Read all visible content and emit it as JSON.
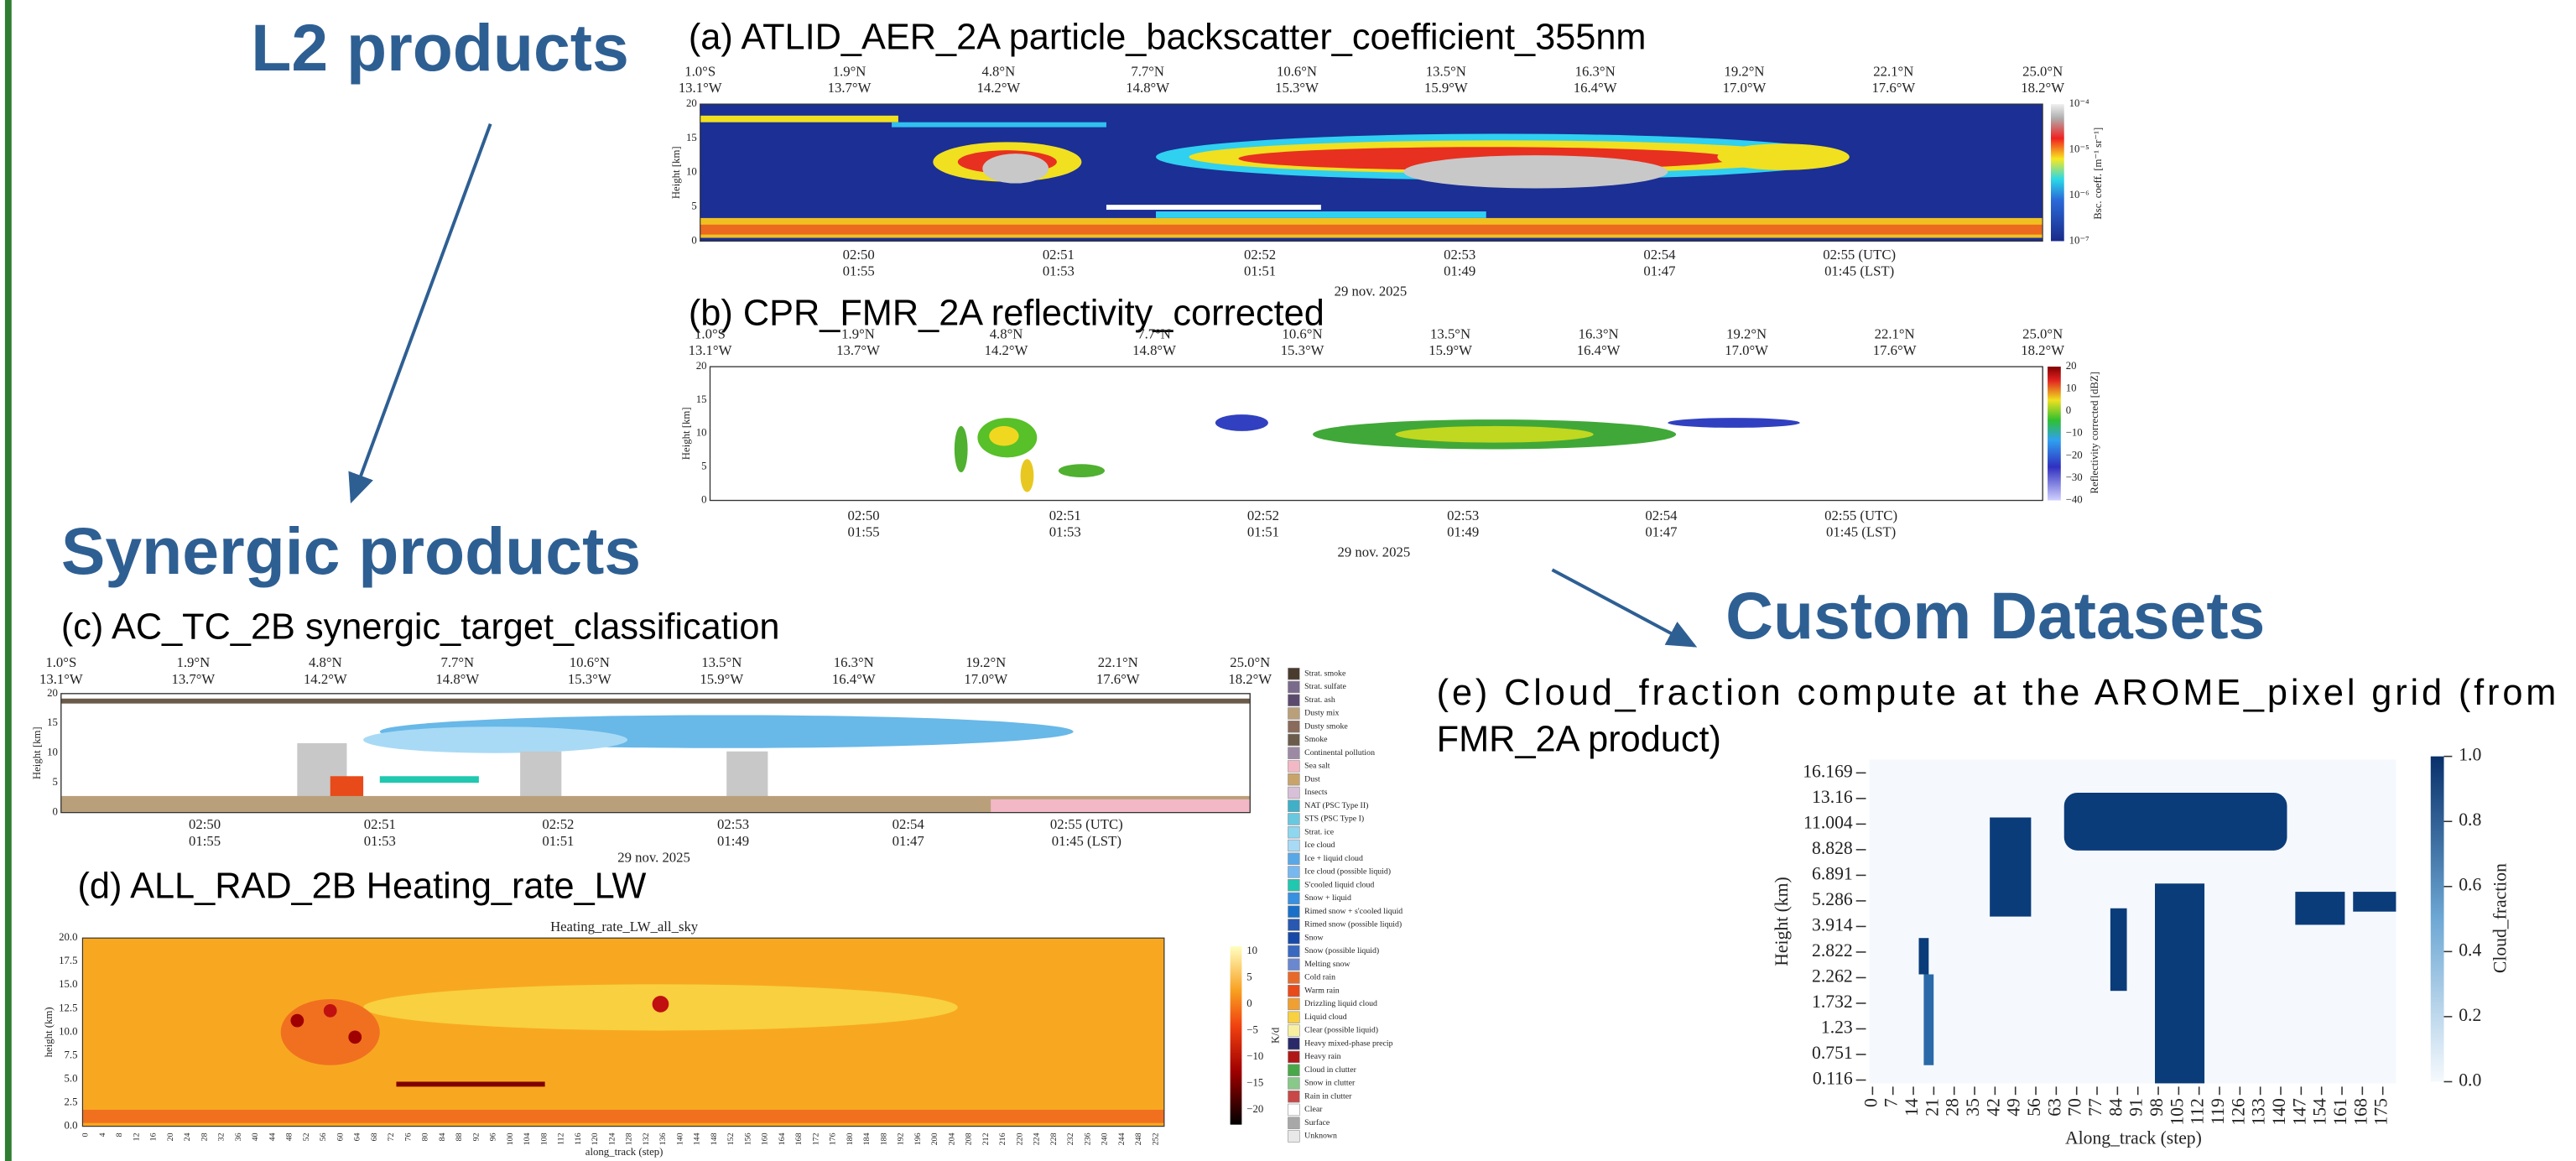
{
  "headings": {
    "l2": "L2 products",
    "synergic": "Synergic products",
    "custom": "Custom Datasets"
  },
  "panels": {
    "a": {
      "title": "(a) ATLID_AER_2A particle_backscatter_coefficient_355nm",
      "top_ticks": [
        [
          "1.0°S",
          "13.1°W"
        ],
        [
          "1.9°N",
          "13.7°W"
        ],
        [
          "4.8°N",
          "14.2°W"
        ],
        [
          "7.7°N",
          "14.8°W"
        ],
        [
          "10.6°N",
          "15.3°W"
        ],
        [
          "13.5°N",
          "15.9°W"
        ],
        [
          "16.3°N",
          "16.4°W"
        ],
        [
          "19.2°N",
          "17.0°W"
        ],
        [
          "22.1°N",
          "17.6°W"
        ],
        [
          "25.0°N",
          "18.2°W"
        ]
      ],
      "y_label": "Height [km]",
      "y_ticks": [
        "20",
        "15",
        "10",
        "5",
        "0"
      ],
      "time_ticks": [
        [
          "02:50",
          "01:55"
        ],
        [
          "02:51",
          "01:53"
        ],
        [
          "02:52",
          "01:51"
        ],
        [
          "02:53",
          "01:49"
        ],
        [
          "02:54",
          "01:47"
        ],
        [
          "02:55 (UTC)",
          "01:45 (LST)"
        ]
      ],
      "date": "29 nov. 2025",
      "colorbar_label": "Bsc. coeff. [m⁻¹ sr⁻¹]",
      "colorbar_ticks": [
        "10⁻⁴",
        "10⁻⁵",
        "10⁻⁶",
        "10⁻⁷"
      ]
    },
    "b": {
      "title": "(b) CPR_FMR_2A reflectivity_corrected",
      "top_ticks": [
        [
          "1.0°S",
          "13.1°W"
        ],
        [
          "1.9°N",
          "13.7°W"
        ],
        [
          "4.8°N",
          "14.2°W"
        ],
        [
          "7.7°N",
          "14.8°W"
        ],
        [
          "10.6°N",
          "15.3°W"
        ],
        [
          "13.5°N",
          "15.9°W"
        ],
        [
          "16.3°N",
          "16.4°W"
        ],
        [
          "19.2°N",
          "17.0°W"
        ],
        [
          "22.1°N",
          "17.6°W"
        ],
        [
          "25.0°N",
          "18.2°W"
        ]
      ],
      "y_label": "Height [km]",
      "y_ticks": [
        "20",
        "15",
        "10",
        "5",
        "0"
      ],
      "time_ticks": [
        [
          "02:50",
          "01:55"
        ],
        [
          "02:51",
          "01:53"
        ],
        [
          "02:52",
          "01:51"
        ],
        [
          "02:53",
          "01:49"
        ],
        [
          "02:54",
          "01:47"
        ],
        [
          "02:55 (UTC)",
          "01:45 (LST)"
        ]
      ],
      "date": "29 nov. 2025",
      "colorbar_label": "Reflectivity corrected [dBZ]",
      "colorbar_ticks": [
        "20",
        "10",
        "0",
        "−10",
        "−20",
        "−30",
        "−40"
      ]
    },
    "c": {
      "title": "(c) AC_TC_2B synergic_target_classification",
      "top_ticks": [
        [
          "1.0°S",
          "13.1°W"
        ],
        [
          "1.9°N",
          "13.7°W"
        ],
        [
          "4.8°N",
          "14.2°W"
        ],
        [
          "7.7°N",
          "14.8°W"
        ],
        [
          "10.6°N",
          "15.3°W"
        ],
        [
          "13.5°N",
          "15.9°W"
        ],
        [
          "16.3°N",
          "16.4°W"
        ],
        [
          "19.2°N",
          "17.0°W"
        ],
        [
          "22.1°N",
          "17.6°W"
        ],
        [
          "25.0°N",
          "18.2°W"
        ]
      ],
      "y_label": "Height [km]",
      "y_ticks": [
        "20",
        "15",
        "10",
        "5",
        "0"
      ],
      "time_ticks": [
        [
          "02:50",
          "01:55"
        ],
        [
          "02:51",
          "01:53"
        ],
        [
          "02:52",
          "01:51"
        ],
        [
          "02:53",
          "01:49"
        ],
        [
          "02:54",
          "01:47"
        ],
        [
          "02:55 (UTC)",
          "01:45 (LST)"
        ]
      ],
      "date": "29 nov. 2025",
      "legend": [
        {
          "label": "Strat. smoke",
          "color": "#4a3b2f"
        },
        {
          "label": "Strat. sulfate",
          "color": "#7a6a8c"
        },
        {
          "label": "Strat. ash",
          "color": "#5b4a6e"
        },
        {
          "label": "Dusty mix",
          "color": "#b9a07a"
        },
        {
          "label": "Dusty smoke",
          "color": "#8a6a5a"
        },
        {
          "label": "Smoke",
          "color": "#6b5b4b"
        },
        {
          "label": "Continental pollution",
          "color": "#9c8aa5"
        },
        {
          "label": "Sea salt",
          "color": "#f2b8c6"
        },
        {
          "label": "Dust",
          "color": "#c8a46a"
        },
        {
          "label": "Insects",
          "color": "#d8c0d8"
        },
        {
          "label": "NAT (PSC Type II)",
          "color": "#3fb0c8"
        },
        {
          "label": "STS (PSC Type I)",
          "color": "#68c8e0"
        },
        {
          "label": "Strat. ice",
          "color": "#8fd6ef"
        },
        {
          "label": "Ice cloud",
          "color": "#a8daf5"
        },
        {
          "label": "Ice + liquid cloud",
          "color": "#58a8e8"
        },
        {
          "label": "Ice cloud (possible liquid)",
          "color": "#78b8f0"
        },
        {
          "label": "S'cooled liquid cloud",
          "color": "#20c8b0"
        },
        {
          "label": "Snow + liquid",
          "color": "#3890e0"
        },
        {
          "label": "Rimed snow + s'cooled liquid",
          "color": "#1a70c8"
        },
        {
          "label": "Rimed snow (possible liquid)",
          "color": "#2858b0"
        },
        {
          "label": "Snow",
          "color": "#1848a8"
        },
        {
          "label": "Snow (possible liquid)",
          "color": "#3868c0"
        },
        {
          "label": "Melting snow",
          "color": "#6a88d0"
        },
        {
          "label": "Cold rain",
          "color": "#e86a2a"
        },
        {
          "label": "Warm rain",
          "color": "#e84a1a"
        },
        {
          "label": "Drizzling liquid cloud",
          "color": "#f0a030"
        },
        {
          "label": "Liquid cloud",
          "color": "#f8d040"
        },
        {
          "label": "Clear (possible liquid)",
          "color": "#f8f0a0"
        },
        {
          "label": "Heavy mixed-phase precip",
          "color": "#2a2a6a"
        },
        {
          "label": "Heavy rain",
          "color": "#b01818"
        },
        {
          "label": "Cloud in clutter",
          "color": "#48a848"
        },
        {
          "label": "Snow in clutter",
          "color": "#88c888"
        },
        {
          "label": "Rain in clutter",
          "color": "#c84848"
        },
        {
          "label": "Clear",
          "color": "#ffffff"
        },
        {
          "label": "Surface",
          "color": "#a8a8a8"
        },
        {
          "label": "Unknown",
          "color": "#e8e8e8"
        }
      ]
    },
    "d": {
      "title": "(d) ALL_RAD_2B Heating_rate_LW",
      "plot_title": "Heating_rate_LW_all_sky",
      "y_label": "height (km)",
      "y_ticks": [
        "20.0",
        "17.5",
        "15.0",
        "12.5",
        "10.0",
        "7.5",
        "5.0",
        "2.5",
        "0.0"
      ],
      "x_label": "along_track (step)",
      "x_ticks": [
        0,
        4,
        8,
        12,
        16,
        20,
        24,
        28,
        32,
        36,
        40,
        44,
        48,
        52,
        56,
        60,
        64,
        68,
        72,
        76,
        80,
        84,
        88,
        92,
        96,
        100,
        104,
        108,
        112,
        116,
        120,
        124,
        128,
        132,
        136,
        140,
        144,
        148,
        152,
        156,
        160,
        164,
        168,
        172,
        176,
        180,
        184,
        188,
        192,
        196,
        200,
        204,
        208,
        212,
        216,
        220,
        224,
        228,
        232,
        236,
        240,
        244,
        248,
        252
      ],
      "colorbar_label": "K/d",
      "colorbar_ticks": [
        "10",
        "5",
        "0",
        "−5",
        "−10",
        "−15",
        "−20"
      ]
    },
    "e": {
      "title_lines": [
        "(e) Cloud_fraction compute at the AROME_pixel grid (from",
        "FMR_2A product)"
      ],
      "y_label": "Height (km)",
      "y_ticks": [
        "16.169",
        "13.16",
        "11.004",
        "8.828",
        "6.891",
        "5.286",
        "3.914",
        "2.822",
        "2.262",
        "1.732",
        "1.23",
        "0.751",
        "0.116"
      ],
      "x_label": "Along_track (step)",
      "x_ticks": [
        0,
        7,
        14,
        21,
        28,
        35,
        42,
        49,
        56,
        63,
        70,
        77,
        84,
        91,
        98,
        105,
        112,
        119,
        126,
        133,
        140,
        147,
        154,
        161,
        168,
        175
      ],
      "colorbar_label": "Cloud_fraction",
      "colorbar_ticks": [
        "1.0",
        "0.8",
        "0.6",
        "0.4",
        "0.2",
        "0.0"
      ]
    }
  }
}
